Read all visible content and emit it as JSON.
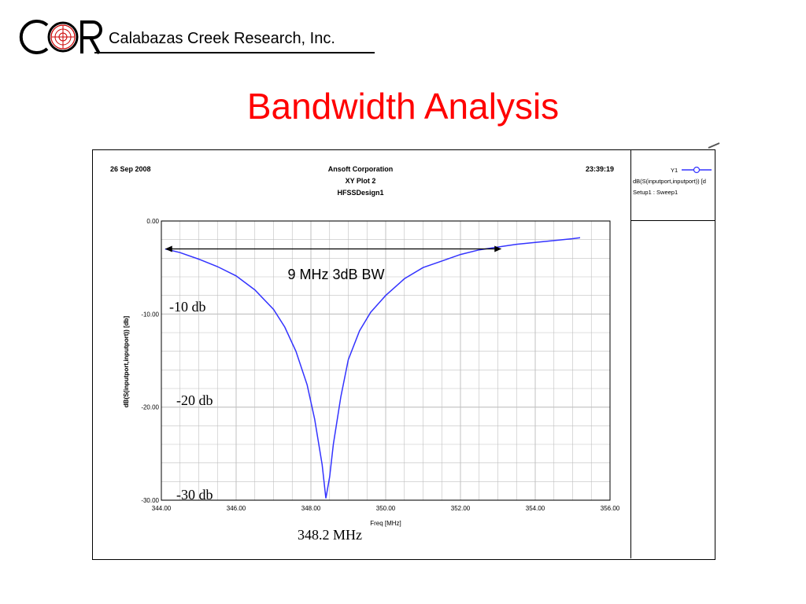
{
  "header": {
    "company": "Calabazas Creek Research, Inc.",
    "logo_letters": "CCR"
  },
  "slide_title": "Bandwidth Analysis",
  "plot_header": {
    "date": "26 Sep 2008",
    "time": "23:39:19",
    "line1": "Ansoft Corporation",
    "line2": "XY Plot 2",
    "line3": "HFSSDesign1"
  },
  "legend": {
    "series_id": "Y1",
    "trace_label": "dB(S(inputport,inputport)) [d",
    "setup_label": "Setup1 : Sweep1"
  },
  "colors": {
    "title": "#ff0000",
    "trace": "#3333ff",
    "grid": "#c0c0c0"
  },
  "annotations": {
    "bandwidth": "9 MHz 3dB BW",
    "minus10": "-10 db",
    "minus20": "-20 db",
    "minus30": "-30 db",
    "center_freq": "348.2 MHz"
  },
  "chart_data": {
    "type": "line",
    "xlabel": "Freq [MHz]",
    "ylabel": "dB(S(inputport,inputport)) [db]",
    "xlim": [
      344,
      356
    ],
    "ylim": [
      -30,
      0
    ],
    "grid": true,
    "x_tick_labels": [
      "344.00",
      "346.00",
      "348.00",
      "350.00",
      "352.00",
      "354.00",
      "356.00"
    ],
    "y_tick_labels": [
      "0.00",
      "-10.00",
      "-20.00",
      "-30.00"
    ],
    "series": [
      {
        "name": "dB(S(inputport,inputport))",
        "x": [
          344.1,
          344.5,
          345.0,
          345.5,
          346.0,
          346.5,
          347.0,
          347.3,
          347.6,
          347.9,
          348.1,
          348.3,
          348.4,
          348.5,
          348.6,
          348.8,
          349.0,
          349.3,
          349.6,
          350.0,
          350.5,
          351.0,
          351.5,
          352.0,
          352.5,
          353.0,
          353.5,
          354.0,
          354.5,
          355.0,
          355.2
        ],
        "y": [
          -3.0,
          -3.4,
          -4.1,
          -4.9,
          -5.9,
          -7.4,
          -9.5,
          -11.4,
          -14.0,
          -17.6,
          -21.3,
          -26.2,
          -29.8,
          -27.5,
          -24.0,
          -18.9,
          -14.9,
          -11.8,
          -9.8,
          -8.0,
          -6.2,
          -5.0,
          -4.3,
          -3.6,
          -3.1,
          -2.8,
          -2.5,
          -2.3,
          -2.1,
          -1.9,
          -1.8
        ]
      }
    ],
    "annotation_arrow": {
      "x_start": 344.1,
      "x_end": 353.1,
      "y": -3.0
    }
  }
}
